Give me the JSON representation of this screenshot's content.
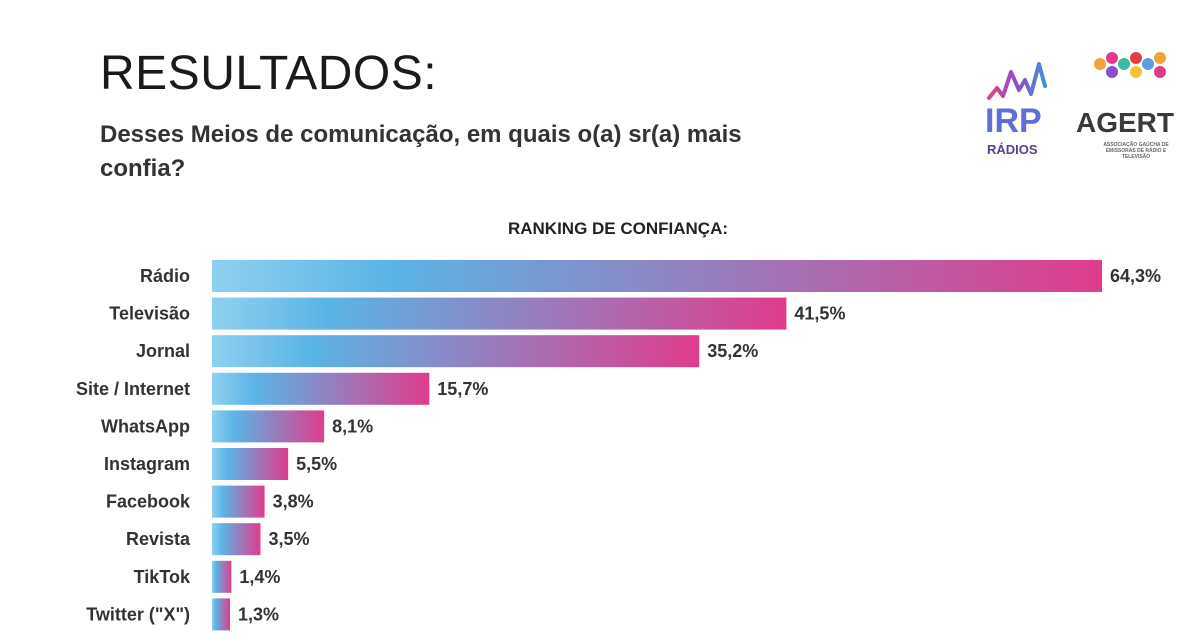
{
  "header": {
    "title": "RESULTADOS:",
    "question": "Desses Meios de comunicação, em quais o(a) sr(a) mais confia?"
  },
  "logos": {
    "irp_text": "IRP",
    "irp_sub": "RÁDIOS",
    "agert_text": "AGERT",
    "agert_sub": "ASSOCIAÇÃO GAÚCHA DE EMISSORAS DE RÁDIO E TELEVISÃO"
  },
  "colors": {
    "bar_start": "#8fd0ef",
    "bar_mid": "#5ab4e6",
    "bar_end": "#e03c8c",
    "label": "#333333"
  },
  "chart_data": {
    "type": "bar",
    "orientation": "horizontal",
    "title": "RANKING DE CONFIANÇA:",
    "categories": [
      "Rádio",
      "Televisão",
      "Jornal",
      "Site / Internet",
      "WhatsApp",
      "Instagram",
      "Facebook",
      "Revista",
      "TikTok",
      "Twitter (\"X\")"
    ],
    "values": [
      64.3,
      41.5,
      35.2,
      15.7,
      8.1,
      5.5,
      3.8,
      3.5,
      1.4,
      1.3
    ],
    "value_labels": [
      "64,3%",
      "41,5%",
      "35,2%",
      "15,7%",
      "8,1%",
      "5,5%",
      "3,8%",
      "3,5%",
      "1,4%",
      "1,3%"
    ],
    "xlim": [
      0,
      64.3
    ],
    "grid": false,
    "legend": "none"
  }
}
